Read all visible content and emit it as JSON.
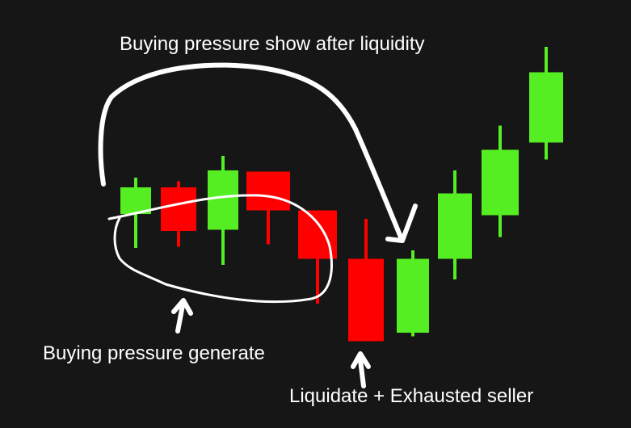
{
  "chart_data": {
    "type": "candlestick",
    "title": "",
    "xlabel": "",
    "ylabel": "",
    "axes_visible": false,
    "grid": false,
    "background": "#161616",
    "colors": {
      "up": "#55ee22",
      "down": "#ff0000",
      "annotation": "#ffffff"
    },
    "candles": [
      {
        "direction": "up",
        "open": 28,
        "close": 50,
        "high": 58,
        "low": 0
      },
      {
        "direction": "down",
        "open": 50,
        "close": 14,
        "high": 55,
        "low": 1
      },
      {
        "direction": "up",
        "open": 15,
        "close": 64,
        "high": 76,
        "low": -14
      },
      {
        "direction": "down",
        "open": 63,
        "close": 31,
        "high": 63,
        "low": 3
      },
      {
        "direction": "down",
        "open": 31,
        "close": -9,
        "high": 31,
        "low": -46
      },
      {
        "direction": "down",
        "open": -9,
        "close": -77,
        "high": 24,
        "low": -77
      },
      {
        "direction": "up",
        "open": -70,
        "close": -9,
        "high": -2,
        "low": -73
      },
      {
        "direction": "up",
        "open": -9,
        "close": 45,
        "high": 64,
        "low": -26
      },
      {
        "direction": "up",
        "open": 27,
        "close": 81,
        "high": 101,
        "low": 9
      },
      {
        "direction": "up",
        "open": 87,
        "close": 145,
        "high": 166,
        "low": 73
      }
    ],
    "annotations": [
      {
        "text": "Buying pressure show after liquidity"
      },
      {
        "text": "Buying pressure generate"
      },
      {
        "text": "Liquidate + Exhausted seller"
      }
    ]
  }
}
